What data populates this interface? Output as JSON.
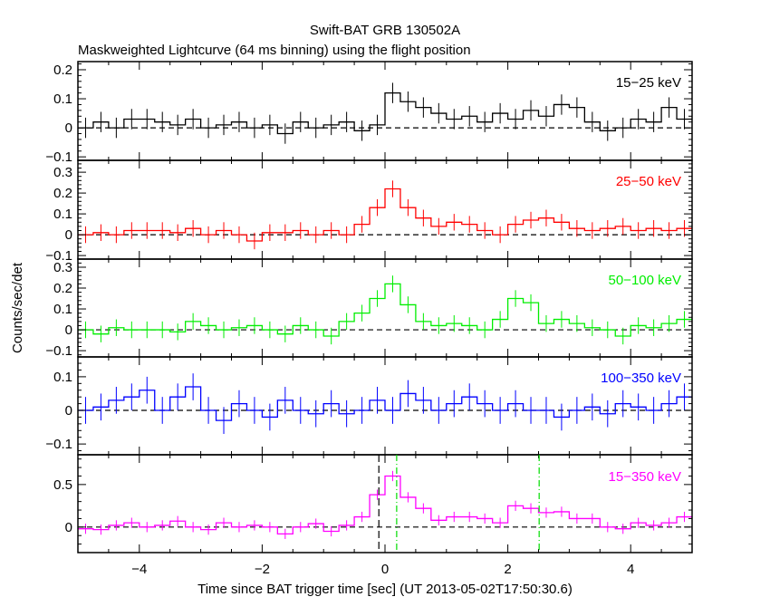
{
  "chart_data": {
    "type": "line",
    "title": "Swift-BAT GRB 130502A",
    "subtitle": "Maskweighted Lightcurve (64 ms binning) using the flight position",
    "xlabel": "Time since BAT trigger time [sec] (UT 2013-05-02T17:50:30.6)",
    "ylabel": "Counts/sec/det",
    "xlim": [
      -5,
      5
    ],
    "x_ticks": [
      -4,
      -2,
      0,
      2,
      4
    ],
    "x_tick_labels": [
      "−4",
      "−2",
      "0",
      "2",
      "4"
    ],
    "bin_edges_start": -5,
    "bin_width": 0.25,
    "markers": [
      {
        "panel": 4,
        "x": -0.1,
        "style": "dashed",
        "color": "#000000"
      },
      {
        "panel": 4,
        "x": 0.19,
        "style": "dash-dot",
        "color": "#00dd00"
      },
      {
        "panel": 4,
        "x": 2.51,
        "style": "dash-dot",
        "color": "#00dd00"
      }
    ],
    "series": [
      {
        "name": "15−25 keV",
        "color": "#000000",
        "ylim": [
          -0.112,
          0.228
        ],
        "ticks": [
          -0.1,
          0,
          0.1,
          0.2
        ],
        "tick_labels": [
          "−0.1",
          "0",
          "0.1",
          "0.2"
        ],
        "error": 0.035,
        "values": [
          0.0,
          0.02,
          0.0,
          0.03,
          0.03,
          0.02,
          0.01,
          0.03,
          0.0,
          0.01,
          0.02,
          0.0,
          0.01,
          -0.02,
          0.02,
          0.0,
          0.01,
          0.02,
          -0.01,
          0.01,
          0.12,
          0.09,
          0.07,
          0.05,
          0.03,
          0.04,
          0.02,
          0.05,
          0.03,
          0.06,
          0.04,
          0.08,
          0.07,
          0.02,
          -0.01,
          0.0,
          0.03,
          0.02,
          0.07,
          0.03
        ]
      },
      {
        "name": "25−50 keV",
        "color": "#ff0000",
        "ylim": [
          -0.117,
          0.357
        ],
        "ticks": [
          -0.1,
          0,
          0.1,
          0.2,
          0.3
        ],
        "tick_labels": [
          "−0.1",
          "0",
          "0.1",
          "0.2",
          "0.3"
        ],
        "error": 0.04,
        "values": [
          0.0,
          0.01,
          0.0,
          0.02,
          0.02,
          0.02,
          0.01,
          0.03,
          0.0,
          0.02,
          0.0,
          -0.03,
          0.01,
          0.01,
          0.02,
          0.0,
          0.02,
          0.0,
          0.05,
          0.13,
          0.22,
          0.13,
          0.08,
          0.04,
          0.06,
          0.05,
          0.02,
          0.0,
          0.05,
          0.07,
          0.08,
          0.06,
          0.03,
          0.02,
          0.03,
          0.04,
          0.02,
          0.03,
          0.02,
          0.03
        ]
      },
      {
        "name": "50−100 keV",
        "color": "#00ee00",
        "ylim": [
          -0.13,
          0.339
        ],
        "ticks": [
          -0.1,
          0,
          0.1,
          0.2,
          0.3
        ],
        "tick_labels": [
          "−0.1",
          "0",
          "0.1",
          "0.2",
          "0.3"
        ],
        "error": 0.04,
        "values": [
          0.0,
          -0.02,
          0.01,
          0.0,
          0.0,
          0.0,
          -0.01,
          0.04,
          0.02,
          0.0,
          0.01,
          0.02,
          0.0,
          -0.02,
          0.02,
          0.0,
          -0.03,
          0.04,
          0.08,
          0.15,
          0.22,
          0.12,
          0.04,
          0.02,
          0.03,
          0.02,
          0.0,
          0.05,
          0.15,
          0.13,
          0.03,
          0.05,
          0.03,
          0.01,
          0.0,
          -0.03,
          0.02,
          0.01,
          0.03,
          0.05
        ]
      },
      {
        "name": "100−350 keV",
        "color": "#0000ff",
        "ylim": [
          -0.132,
          0.159
        ],
        "ticks": [
          -0.1,
          0,
          0.1
        ],
        "tick_labels": [
          "−0.1",
          "0",
          "0.1"
        ],
        "error": 0.04,
        "values": [
          0.0,
          0.01,
          0.03,
          0.04,
          0.06,
          0.0,
          0.04,
          0.07,
          0.0,
          -0.03,
          0.02,
          0.0,
          -0.02,
          0.03,
          0.0,
          -0.01,
          0.02,
          -0.01,
          0.0,
          0.03,
          0.0,
          0.05,
          0.03,
          0.0,
          0.02,
          0.04,
          0.02,
          0.0,
          0.02,
          0.0,
          0.0,
          -0.02,
          0.0,
          0.01,
          -0.01,
          0.02,
          0.01,
          0.0,
          0.02,
          0.04
        ]
      },
      {
        "name": "15−350 keV",
        "color": "#ff00ff",
        "ylim": [
          -0.3,
          0.85
        ],
        "ticks": [
          0,
          0.5
        ],
        "tick_labels": [
          "0",
          "0.5"
        ],
        "error": 0.06,
        "values": [
          -0.02,
          -0.03,
          0.02,
          0.05,
          0.0,
          0.02,
          0.07,
          0.0,
          -0.03,
          0.05,
          0.0,
          0.02,
          0.0,
          -0.08,
          0.0,
          0.04,
          -0.05,
          0.02,
          0.12,
          0.38,
          0.6,
          0.35,
          0.22,
          0.08,
          0.12,
          0.12,
          0.1,
          0.05,
          0.25,
          0.22,
          0.17,
          0.18,
          0.1,
          0.1,
          0.0,
          -0.02,
          0.05,
          0.02,
          0.05,
          0.12
        ]
      }
    ]
  }
}
